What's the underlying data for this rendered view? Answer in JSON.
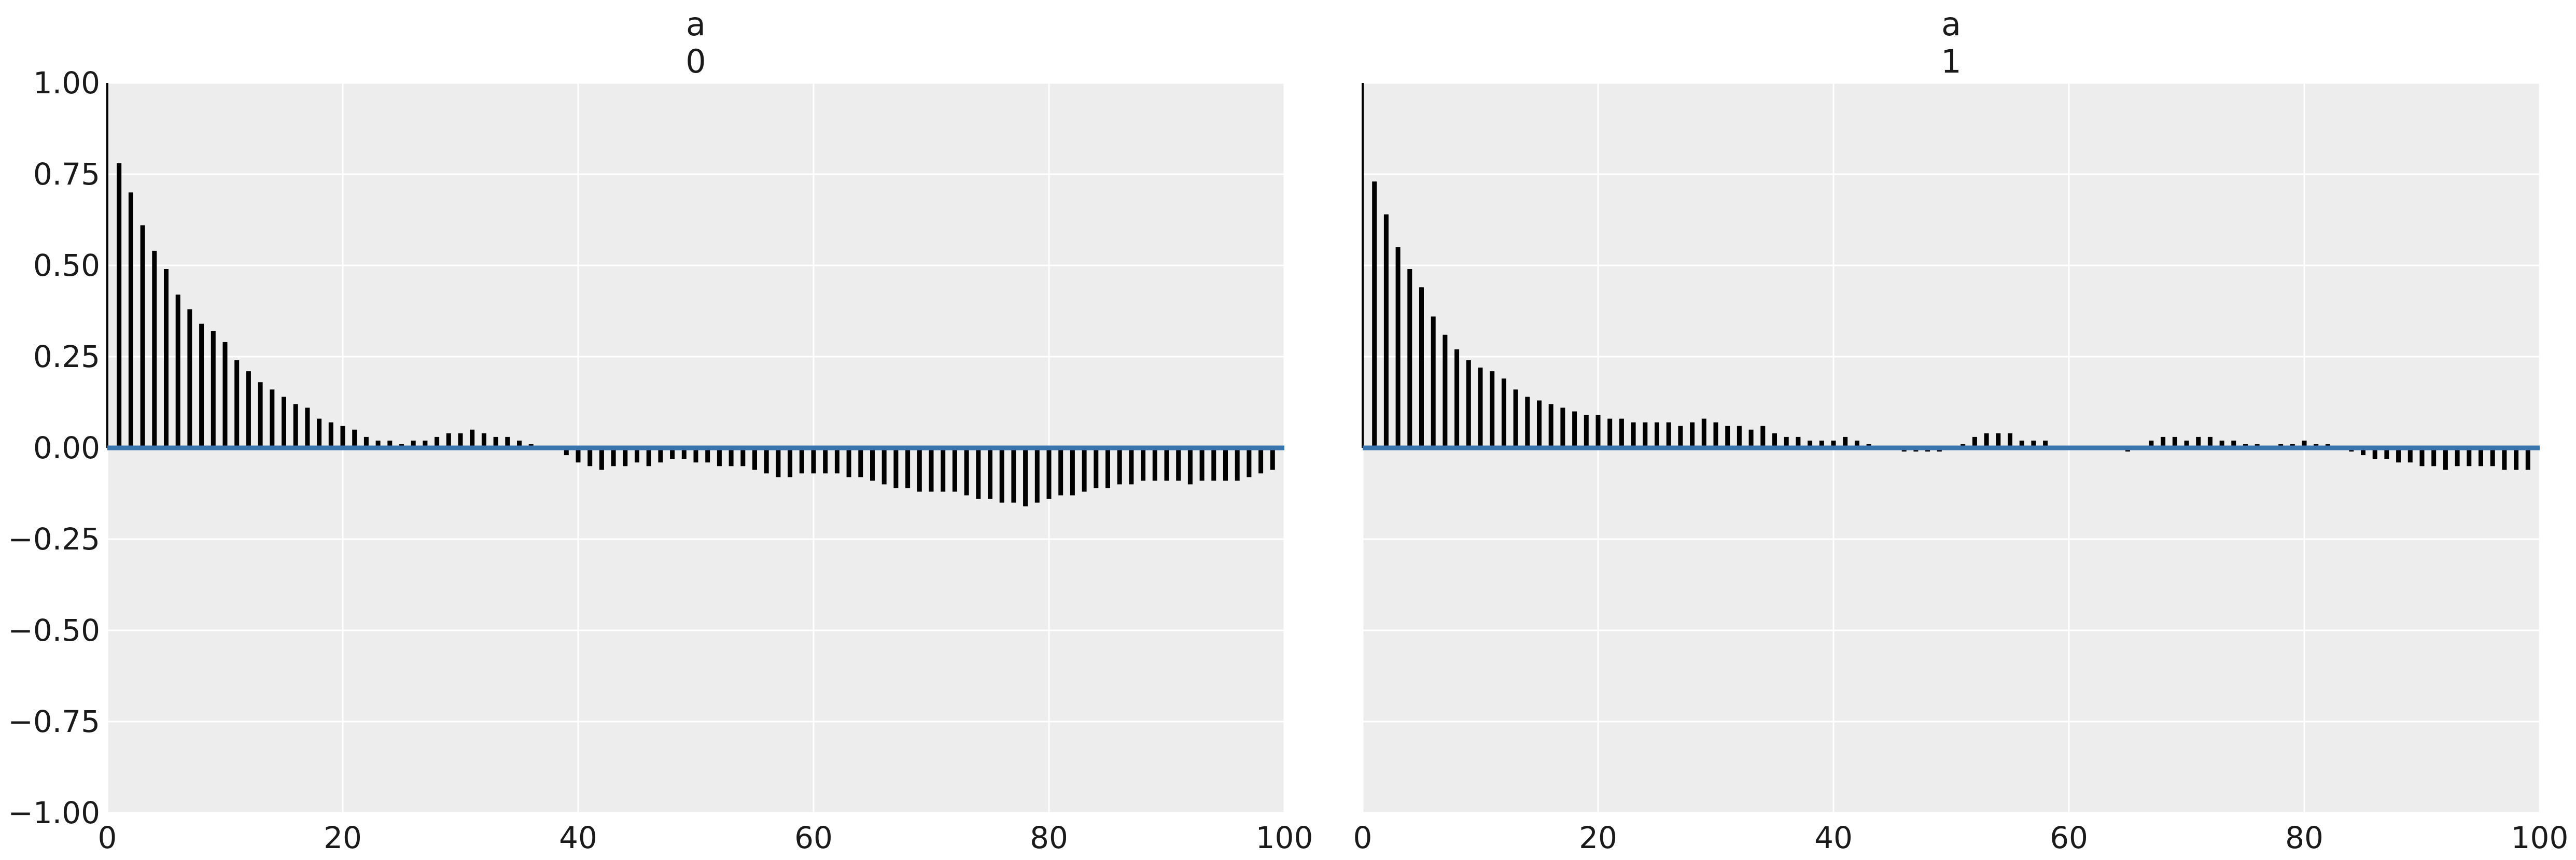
{
  "chart_data": [
    {
      "type": "bar",
      "title_lines": [
        "a",
        "0"
      ],
      "xlabel": "",
      "ylabel": "",
      "xlim": [
        0,
        100
      ],
      "ylim": [
        -1,
        1
      ],
      "xticks": [
        "0",
        "20",
        "40",
        "60",
        "80",
        "100"
      ],
      "yticks": [
        "1.00",
        "0.75",
        "0.50",
        "0.25",
        "0.00",
        "−0.25",
        "−0.50",
        "−0.75",
        "−1.00"
      ],
      "grid": true,
      "baseline": 0,
      "lags": [
        0,
        1,
        2,
        3,
        4,
        5,
        6,
        7,
        8,
        9,
        10,
        11,
        12,
        13,
        14,
        15,
        16,
        17,
        18,
        19,
        20,
        21,
        22,
        23,
        24,
        25,
        26,
        27,
        28,
        29,
        30,
        31,
        32,
        33,
        34,
        35,
        36,
        37,
        38,
        39,
        40,
        41,
        42,
        43,
        44,
        45,
        46,
        47,
        48,
        49,
        50,
        51,
        52,
        53,
        54,
        55,
        56,
        57,
        58,
        59,
        60,
        61,
        62,
        63,
        64,
        65,
        66,
        67,
        68,
        69,
        70,
        71,
        72,
        73,
        74,
        75,
        76,
        77,
        78,
        79,
        80,
        81,
        82,
        83,
        84,
        85,
        86,
        87,
        88,
        89,
        90,
        91,
        92,
        93,
        94,
        95,
        96,
        97,
        98,
        99
      ],
      "values": [
        1.0,
        0.78,
        0.7,
        0.61,
        0.54,
        0.49,
        0.42,
        0.38,
        0.34,
        0.32,
        0.29,
        0.24,
        0.21,
        0.18,
        0.16,
        0.14,
        0.12,
        0.11,
        0.08,
        0.07,
        0.06,
        0.05,
        0.03,
        0.02,
        0.02,
        0.01,
        0.02,
        0.02,
        0.03,
        0.04,
        0.04,
        0.05,
        0.04,
        0.03,
        0.03,
        0.02,
        0.01,
        0.0,
        0.0,
        -0.02,
        -0.04,
        -0.05,
        -0.06,
        -0.05,
        -0.05,
        -0.04,
        -0.05,
        -0.04,
        -0.03,
        -0.03,
        -0.04,
        -0.04,
        -0.05,
        -0.05,
        -0.05,
        -0.06,
        -0.07,
        -0.08,
        -0.08,
        -0.07,
        -0.07,
        -0.07,
        -0.07,
        -0.08,
        -0.08,
        -0.09,
        -0.1,
        -0.11,
        -0.11,
        -0.12,
        -0.12,
        -0.12,
        -0.12,
        -0.13,
        -0.14,
        -0.14,
        -0.15,
        -0.15,
        -0.16,
        -0.15,
        -0.14,
        -0.13,
        -0.13,
        -0.12,
        -0.11,
        -0.11,
        -0.1,
        -0.1,
        -0.09,
        -0.09,
        -0.09,
        -0.09,
        -0.1,
        -0.09,
        -0.09,
        -0.09,
        -0.09,
        -0.08,
        -0.07,
        -0.06
      ]
    },
    {
      "type": "bar",
      "title_lines": [
        "a",
        "1"
      ],
      "xlabel": "",
      "ylabel": "",
      "xlim": [
        0,
        100
      ],
      "ylim": [
        -1,
        1
      ],
      "xticks": [
        "0",
        "20",
        "40",
        "60",
        "80",
        "100"
      ],
      "yticks": [],
      "grid": true,
      "baseline": 0,
      "lags": [
        0,
        1,
        2,
        3,
        4,
        5,
        6,
        7,
        8,
        9,
        10,
        11,
        12,
        13,
        14,
        15,
        16,
        17,
        18,
        19,
        20,
        21,
        22,
        23,
        24,
        25,
        26,
        27,
        28,
        29,
        30,
        31,
        32,
        33,
        34,
        35,
        36,
        37,
        38,
        39,
        40,
        41,
        42,
        43,
        44,
        45,
        46,
        47,
        48,
        49,
        50,
        51,
        52,
        53,
        54,
        55,
        56,
        57,
        58,
        59,
        60,
        61,
        62,
        63,
        64,
        65,
        66,
        67,
        68,
        69,
        70,
        71,
        72,
        73,
        74,
        75,
        76,
        77,
        78,
        79,
        80,
        81,
        82,
        83,
        84,
        85,
        86,
        87,
        88,
        89,
        90,
        91,
        92,
        93,
        94,
        95,
        96,
        97,
        98,
        99
      ],
      "values": [
        1.0,
        0.73,
        0.64,
        0.55,
        0.49,
        0.44,
        0.36,
        0.31,
        0.27,
        0.24,
        0.22,
        0.21,
        0.19,
        0.16,
        0.14,
        0.13,
        0.12,
        0.11,
        0.1,
        0.09,
        0.09,
        0.08,
        0.08,
        0.07,
        0.07,
        0.07,
        0.07,
        0.06,
        0.07,
        0.08,
        0.07,
        0.06,
        0.06,
        0.05,
        0.06,
        0.04,
        0.03,
        0.03,
        0.02,
        0.02,
        0.02,
        0.03,
        0.02,
        0.01,
        0.0,
        0.0,
        -0.01,
        -0.01,
        -0.01,
        -0.01,
        0.0,
        0.01,
        0.03,
        0.04,
        0.04,
        0.04,
        0.02,
        0.02,
        0.02,
        0.0,
        0.0,
        0.0,
        0.0,
        0.0,
        0.0,
        -0.01,
        0.0,
        0.02,
        0.03,
        0.03,
        0.02,
        0.03,
        0.03,
        0.02,
        0.02,
        0.01,
        0.01,
        0.0,
        0.01,
        0.01,
        0.02,
        0.01,
        0.01,
        0.0,
        -0.01,
        -0.02,
        -0.03,
        -0.03,
        -0.04,
        -0.04,
        -0.05,
        -0.05,
        -0.06,
        -0.05,
        -0.05,
        -0.05,
        -0.05,
        -0.06,
        -0.06,
        -0.06
      ]
    }
  ],
  "colors": {
    "background": "#ffffff",
    "axes_face": "#ededed",
    "grid": "#ffffff",
    "bar": "#000000",
    "baseline": "#3b75ad",
    "text": "#1a1a1a"
  }
}
